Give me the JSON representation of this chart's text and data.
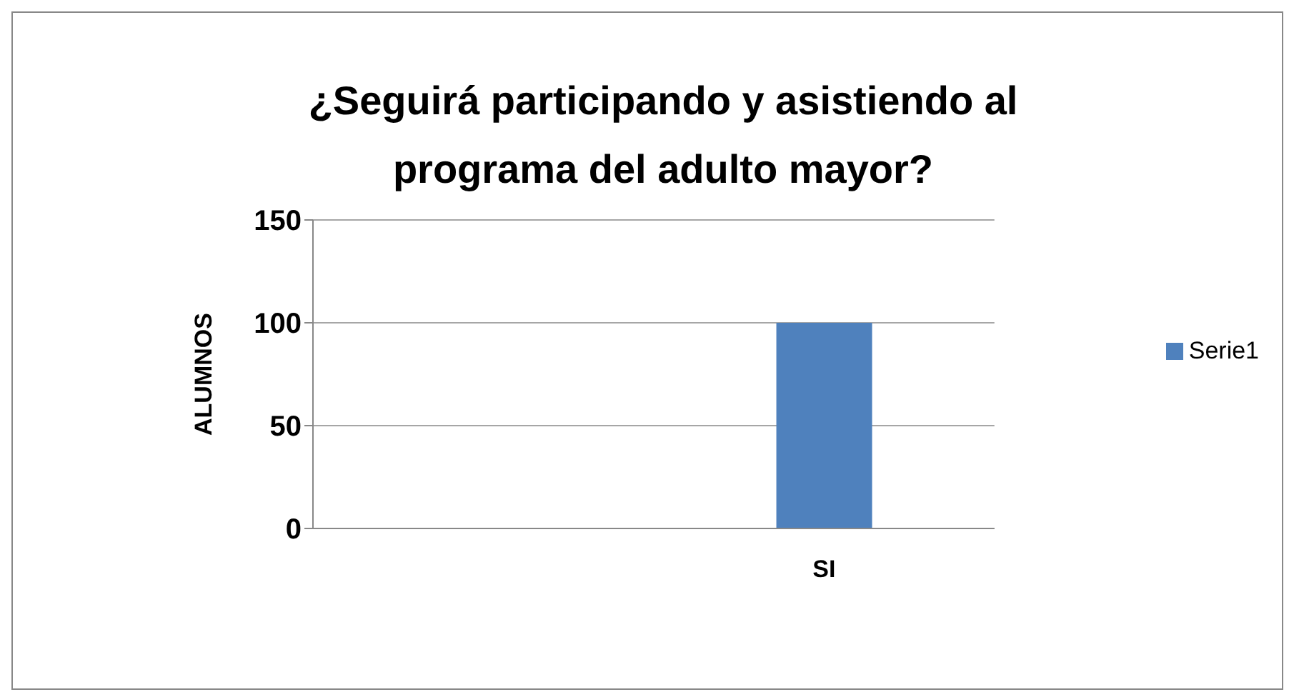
{
  "chart_data": {
    "type": "bar",
    "title": "¿Seguirá participando y asistiendo al programa del adulto mayor?",
    "ylabel": "ALUMNOS",
    "categories": [
      null,
      "SI"
    ],
    "series": [
      {
        "name": "Serie1",
        "color": "#4f81bd",
        "values": [
          null,
          100
        ]
      }
    ],
    "ylim": [
      0,
      150
    ],
    "yticks": [
      0,
      50,
      100,
      150
    ],
    "grid": "y",
    "legend": "right"
  }
}
